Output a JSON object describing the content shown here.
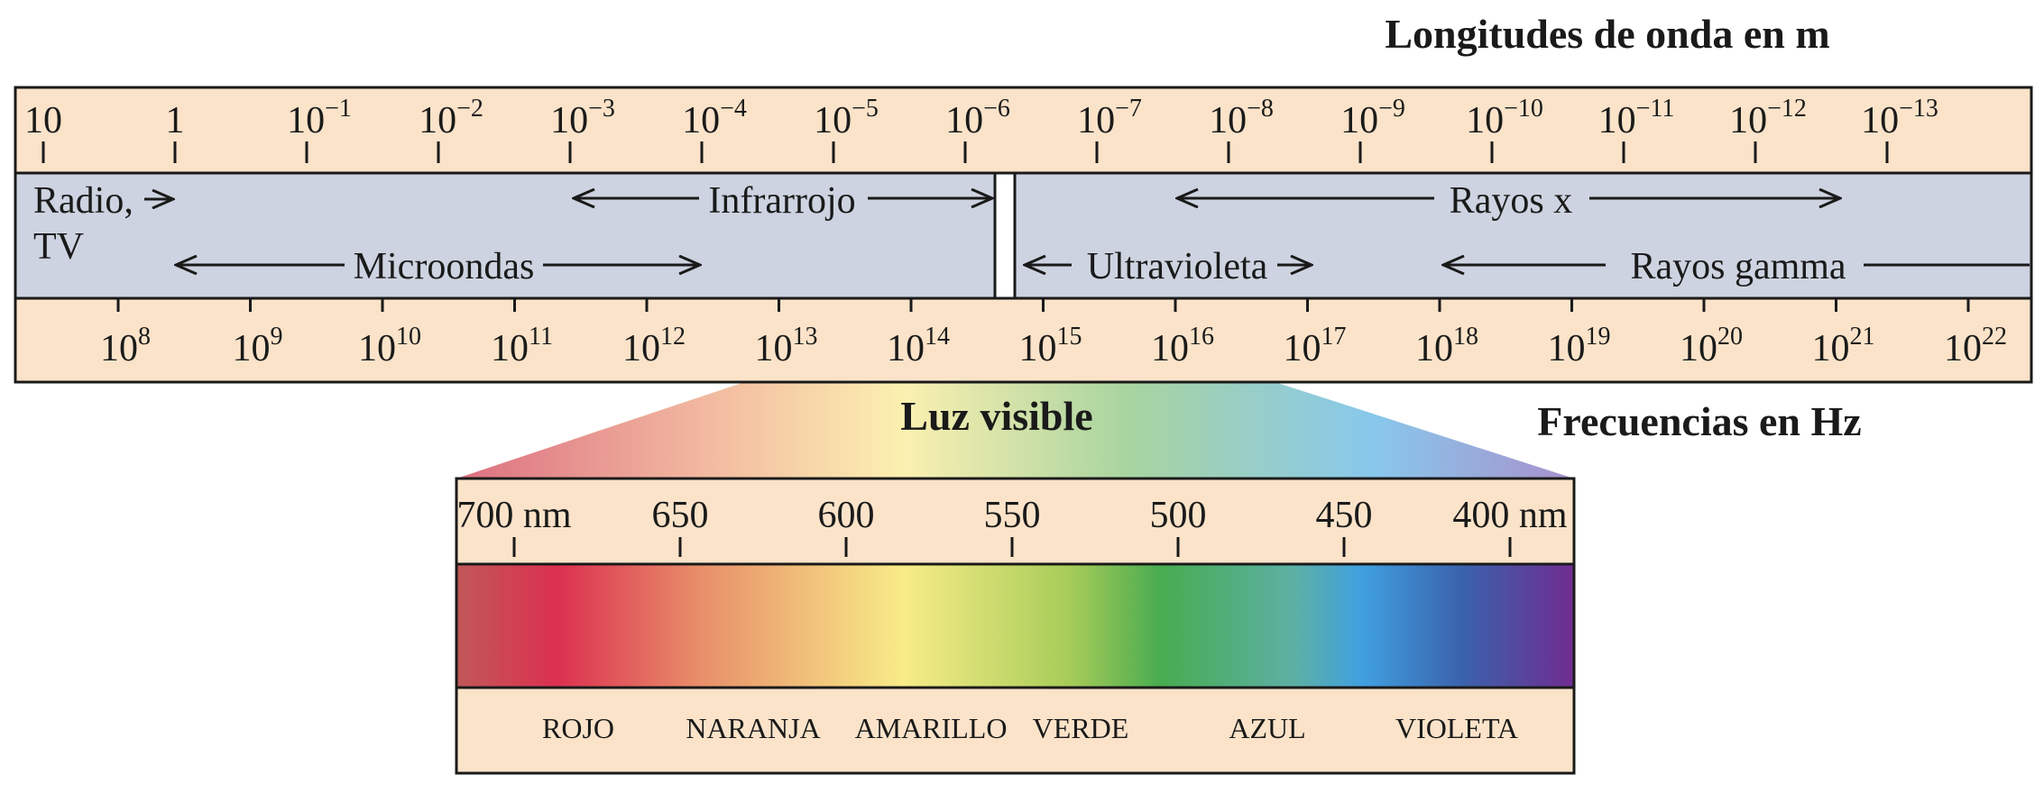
{
  "titles": {
    "wavelength": "Longitudes de onda en m",
    "frequency": "Frecuencias en Hz",
    "visible": "Luz visible"
  },
  "wavelength_ticks": [
    {
      "base": "10",
      "exp": ""
    },
    {
      "base": "1",
      "exp": ""
    },
    {
      "base": "10",
      "exp": "−1"
    },
    {
      "base": "10",
      "exp": "−2"
    },
    {
      "base": "10",
      "exp": "−3"
    },
    {
      "base": "10",
      "exp": "−4"
    },
    {
      "base": "10",
      "exp": "−5"
    },
    {
      "base": "10",
      "exp": "−6"
    },
    {
      "base": "10",
      "exp": "−7"
    },
    {
      "base": "10",
      "exp": "−8"
    },
    {
      "base": "10",
      "exp": "−9"
    },
    {
      "base": "10",
      "exp": "−10"
    },
    {
      "base": "10",
      "exp": "−11"
    },
    {
      "base": "10",
      "exp": "−12"
    },
    {
      "base": "10",
      "exp": "−13"
    }
  ],
  "frequency_ticks": [
    {
      "base": "10",
      "exp": "8"
    },
    {
      "base": "10",
      "exp": "9"
    },
    {
      "base": "10",
      "exp": "10"
    },
    {
      "base": "10",
      "exp": "11"
    },
    {
      "base": "10",
      "exp": "12"
    },
    {
      "base": "10",
      "exp": "13"
    },
    {
      "base": "10",
      "exp": "14"
    },
    {
      "base": "10",
      "exp": "15"
    },
    {
      "base": "10",
      "exp": "16"
    },
    {
      "base": "10",
      "exp": "17"
    },
    {
      "base": "10",
      "exp": "18"
    },
    {
      "base": "10",
      "exp": "19"
    },
    {
      "base": "10",
      "exp": "20"
    },
    {
      "base": "10",
      "exp": "21"
    },
    {
      "base": "10",
      "exp": "22"
    }
  ],
  "regions": {
    "radio_line1": "Radio,",
    "radio_line2": "TV",
    "infrared": "Infrarrojo",
    "xrays": "Rayos x",
    "microwaves": "Microondas",
    "ultraviolet": "Ultravioleta",
    "gamma": "Rayos gamma"
  },
  "visible_ticks": [
    "700 nm",
    "650",
    "600",
    "550",
    "500",
    "450",
    "400 nm"
  ],
  "color_names": [
    "ROJO",
    "NARANJA",
    "AMARILLO",
    "VERDE",
    "AZUL",
    "VIOLETA"
  ],
  "colors": {
    "band_fill": "#fae3c9",
    "region_fill": "#cdd3e0",
    "line": "#1a1a1a"
  }
}
